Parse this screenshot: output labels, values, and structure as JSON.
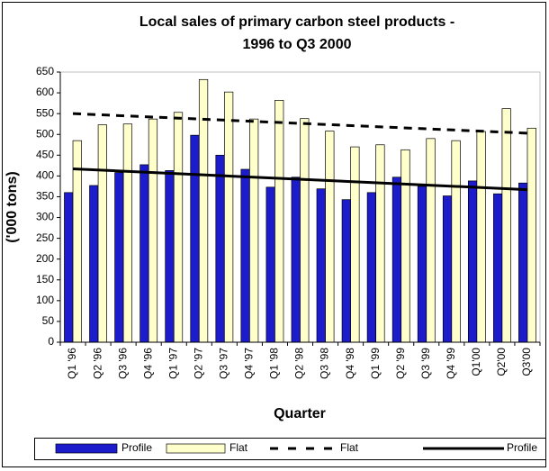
{
  "chart_data": {
    "type": "bar",
    "title_lines": [
      "Local sales of primary carbon steel products -",
      "1996 to Q3 2000"
    ],
    "x_label": "Quarter",
    "y_label": "('000 tons)",
    "categories": [
      "Q1 '96",
      "Q2 '96",
      "Q3 '96",
      "Q4 '96",
      "Q1 '97",
      "Q2 '97",
      "Q3 '97",
      "Q4 '97",
      "Q1 '98",
      "Q2 '98",
      "Q3 '98",
      "Q4 '98",
      "Q1 '99",
      "Q2 '99",
      "Q3 '99",
      "Q4 '99",
      "Q1'00",
      "Q2'00",
      "Q3'00"
    ],
    "series": [
      {
        "name": "Profile",
        "color": "#1c1ccc",
        "values": [
          360,
          377,
          408,
          427,
          413,
          498,
          450,
          416,
          373,
          397,
          369,
          343,
          360,
          397,
          375,
          352,
          388,
          357,
          383
        ]
      },
      {
        "name": "Flat",
        "color": "#ffffcc",
        "values": [
          485,
          523,
          525,
          537,
          553,
          632,
          602,
          537,
          582,
          538,
          508,
          470,
          475,
          463,
          490,
          485,
          507,
          562,
          515
        ]
      }
    ],
    "trendlines": [
      {
        "name": "Flat",
        "style": "dashed",
        "color": "#000000",
        "start": 550,
        "end": 503
      },
      {
        "name": "Profile",
        "style": "solid",
        "color": "#000000",
        "start": 417,
        "end": 367
      }
    ],
    "ylim": [
      0,
      650
    ],
    "yticks": [
      0,
      50,
      100,
      150,
      200,
      250,
      300,
      350,
      400,
      450,
      500,
      550,
      600,
      650
    ],
    "grid": false,
    "legend": "bottom"
  }
}
